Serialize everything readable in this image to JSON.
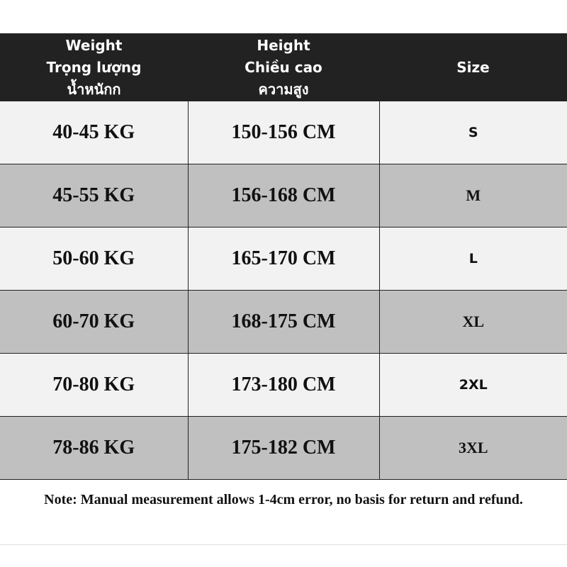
{
  "table": {
    "header": [
      [
        "Weight",
        "Trọng lượng",
        "น้ำหนักก"
      ],
      [
        "Height",
        "Chiều cao",
        "ความสูง"
      ],
      [
        "Size"
      ]
    ],
    "rows": [
      [
        "40-45 KG",
        "150-156 CM",
        "S"
      ],
      [
        "45-55 KG",
        "156-168 CM",
        "M"
      ],
      [
        "50-60 KG",
        "165-170 CM",
        "L"
      ],
      [
        "60-70 KG",
        "168-175 CM",
        "XL"
      ],
      [
        "70-80 KG",
        "173-180 CM",
        "2XL"
      ],
      [
        "78-86 KG",
        "175-182 CM",
        "3XL"
      ]
    ]
  },
  "note": "Note: Manual measurement allows 1-4cm error, no basis for return and refund."
}
